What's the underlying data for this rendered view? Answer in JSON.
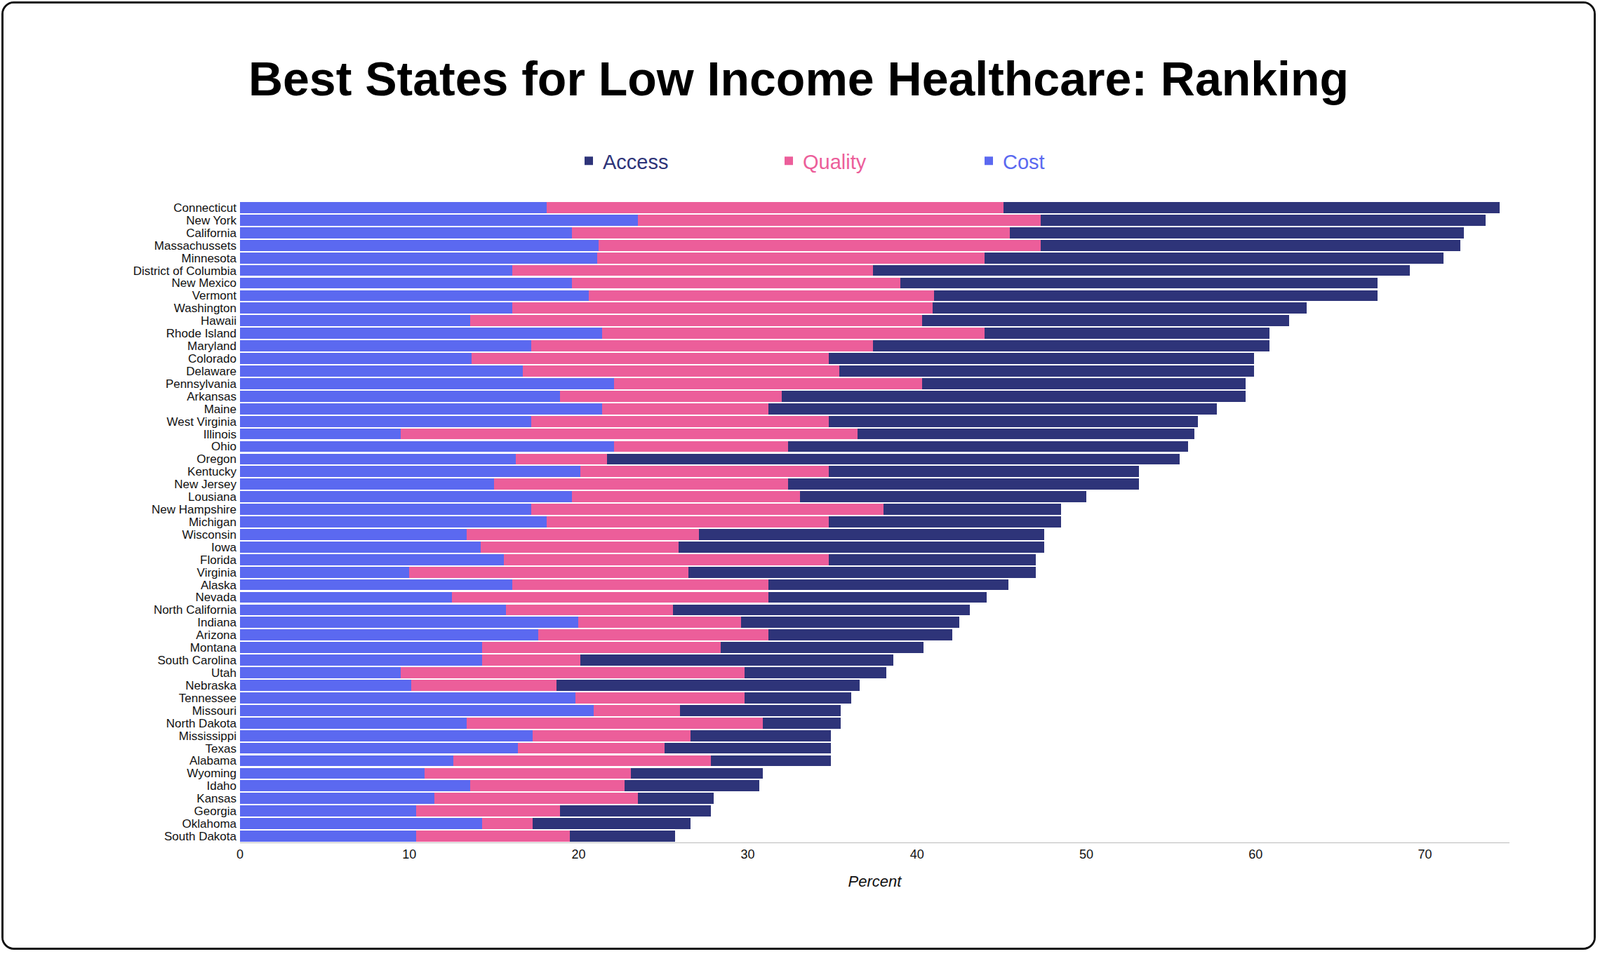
{
  "chart_data": {
    "type": "bar",
    "title": "Best States for Low Income Healthcare: Ranking",
    "x_label": "Percent",
    "orientation": "horizontal",
    "stacked": true,
    "grid": false,
    "legend": "top",
    "xlim": [
      0,
      75
    ],
    "xticks": [
      0,
      10,
      20,
      30,
      40,
      50,
      60,
      70
    ],
    "categories": [
      "Connecticut",
      "New York",
      "California",
      "Massachussets",
      "Minnesota",
      "District of Columbia",
      "New Mexico",
      "Vermont",
      "Washington",
      "Hawaii",
      "Rhode Island",
      "Maryland",
      "Colorado",
      "Delaware",
      "Pennsylvania",
      "Arkansas",
      "Maine",
      "West Virginia",
      "Illinois",
      "Ohio",
      "Oregon",
      "Kentucky",
      "New Jersey",
      "Lousiana",
      "New Hampshire",
      "Michigan",
      "Wisconsin",
      "Iowa",
      "Florida",
      "Virginia",
      "Alaska",
      "Nevada",
      "North California",
      "Indiana",
      "Arizona",
      "Montana",
      "South Carolina",
      "Utah",
      "Nebraska",
      "Tennessee",
      "Missouri",
      "North Dakota",
      "Mississippi",
      "Texas",
      "Alabama",
      "Wyoming",
      "Idaho",
      "Kansas",
      "Georgia",
      "Oklahoma",
      "South Dakota"
    ],
    "series": [
      {
        "name": "Cost",
        "color": "#5B69F0",
        "values": [
          18.1,
          23.5,
          19.6,
          21.2,
          21.1,
          16.1,
          19.6,
          20.6,
          16.1,
          13.6,
          21.4,
          17.2,
          13.7,
          16.7,
          22.1,
          18.9,
          21.4,
          17.2,
          9.5,
          22.1,
          16.3,
          20.1,
          15.0,
          19.6,
          17.2,
          18.1,
          13.4,
          14.2,
          15.6,
          10.0,
          16.1,
          12.5,
          15.7,
          20.0,
          17.6,
          14.3,
          14.3,
          9.5,
          10.1,
          19.8,
          20.9,
          13.4,
          17.3,
          16.4,
          12.6,
          10.9,
          13.6,
          11.5,
          10.4,
          14.3,
          10.4
        ]
      },
      {
        "name": "Quality",
        "color": "#EC5E9A",
        "values": [
          27.0,
          23.8,
          25.9,
          26.1,
          22.9,
          21.3,
          19.4,
          20.4,
          24.8,
          26.7,
          22.6,
          20.2,
          21.1,
          18.7,
          18.2,
          13.1,
          9.8,
          17.6,
          27.0,
          10.3,
          5.4,
          14.7,
          17.4,
          13.5,
          20.8,
          16.7,
          13.7,
          11.7,
          19.2,
          16.5,
          15.1,
          18.7,
          9.9,
          9.6,
          13.6,
          14.1,
          5.8,
          20.3,
          8.6,
          10.0,
          5.1,
          17.5,
          9.3,
          8.7,
          15.2,
          12.2,
          9.1,
          12.0,
          8.5,
          3.0,
          9.1
        ]
      },
      {
        "name": "Access",
        "color": "#2E3479",
        "values": [
          29.3,
          26.3,
          26.8,
          24.8,
          27.1,
          31.7,
          28.2,
          26.2,
          22.1,
          21.7,
          16.8,
          23.4,
          25.1,
          24.5,
          19.1,
          27.4,
          26.5,
          21.8,
          19.9,
          23.6,
          33.8,
          18.3,
          20.7,
          16.9,
          10.5,
          13.7,
          20.4,
          21.6,
          12.2,
          20.5,
          14.2,
          12.9,
          17.5,
          12.9,
          10.9,
          12.0,
          18.5,
          8.4,
          17.9,
          6.3,
          9.5,
          4.6,
          8.3,
          9.8,
          7.1,
          7.8,
          8.0,
          4.5,
          8.9,
          9.3,
          6.2
        ]
      }
    ]
  }
}
